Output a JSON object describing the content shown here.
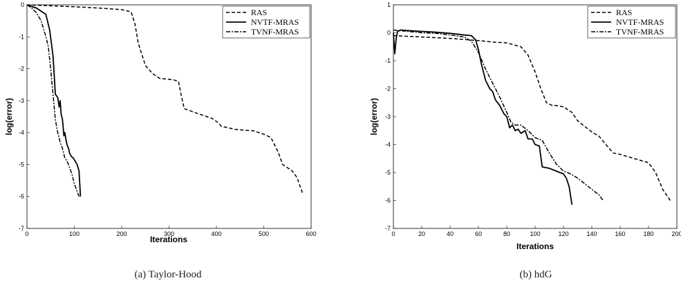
{
  "chart_data": [
    {
      "type": "line",
      "caption": "(a) Taylor-Hood",
      "xlabel": "Iterations",
      "ylabel": "log(error)",
      "xlim": [
        0,
        600
      ],
      "ylim": [
        -7,
        0
      ],
      "xticks": [
        0,
        100,
        200,
        300,
        400,
        500,
        600
      ],
      "yticks": [
        0,
        -1,
        -2,
        -3,
        -4,
        -5,
        -6,
        -7
      ],
      "legend_position": "top-right",
      "series": [
        {
          "name": "RAS",
          "style": "dashed",
          "x": [
            0,
            50,
            100,
            150,
            200,
            220,
            228,
            235,
            250,
            265,
            280,
            310,
            320,
            326,
            332,
            360,
            390,
            405,
            410,
            440,
            480,
            500,
            515,
            520,
            530,
            540,
            560,
            570,
            582
          ],
          "y": [
            0,
            -0.03,
            -0.06,
            -0.1,
            -0.15,
            -0.22,
            -0.6,
            -1.2,
            -1.9,
            -2.15,
            -2.3,
            -2.35,
            -2.4,
            -2.85,
            -3.25,
            -3.4,
            -3.55,
            -3.7,
            -3.8,
            -3.9,
            -3.95,
            -4.05,
            -4.15,
            -4.3,
            -4.6,
            -5.0,
            -5.2,
            -5.4,
            -5.9
          ]
        },
        {
          "name": "NVTF-MRAS",
          "style": "solid",
          "x": [
            0,
            20,
            30,
            40,
            48,
            55,
            60,
            65,
            68,
            70,
            72,
            75,
            78,
            80,
            82,
            85,
            88,
            90,
            94,
            98,
            102,
            106,
            110,
            113
          ],
          "y": [
            0,
            -0.1,
            -0.2,
            -0.3,
            -0.8,
            -1.6,
            -2.8,
            -2.9,
            -3.2,
            -3.0,
            -3.4,
            -3.6,
            -4.1,
            -4.0,
            -4.2,
            -4.4,
            -4.5,
            -4.65,
            -4.75,
            -4.8,
            -4.9,
            -5.0,
            -5.2,
            -6.0
          ]
        },
        {
          "name": "TVNF-MRAS",
          "style": "dashdot",
          "x": [
            0,
            10,
            20,
            30,
            40,
            45,
            50,
            55,
            60,
            65,
            70,
            75,
            80,
            85,
            90,
            95,
            100,
            105,
            110
          ],
          "y": [
            0,
            -0.1,
            -0.25,
            -0.5,
            -1.0,
            -1.3,
            -2.0,
            -2.8,
            -3.6,
            -4.0,
            -4.3,
            -4.5,
            -4.8,
            -4.9,
            -5.1,
            -5.3,
            -5.6,
            -5.8,
            -6.0
          ]
        }
      ]
    },
    {
      "type": "line",
      "caption": "(b) hdG",
      "xlabel": "Iterations",
      "ylabel": "log(error)",
      "xlim": [
        0,
        200
      ],
      "ylim": [
        -7,
        1
      ],
      "xticks": [
        0,
        20,
        40,
        60,
        80,
        100,
        120,
        140,
        160,
        180,
        200
      ],
      "yticks": [
        1,
        0,
        -1,
        -2,
        -3,
        -4,
        -5,
        -6,
        -7
      ],
      "legend_position": "top-right",
      "series": [
        {
          "name": "RAS",
          "style": "dashed",
          "x": [
            0,
            20,
            40,
            60,
            70,
            80,
            90,
            95,
            100,
            104,
            108,
            110,
            112,
            114,
            120,
            126,
            130,
            135,
            140,
            145,
            150,
            155,
            160,
            170,
            180,
            185,
            190,
            196
          ],
          "y": [
            -0.1,
            -0.15,
            -0.2,
            -0.28,
            -0.33,
            -0.36,
            -0.5,
            -0.8,
            -1.4,
            -2.0,
            -2.5,
            -2.55,
            -2.6,
            -2.6,
            -2.65,
            -2.85,
            -3.15,
            -3.35,
            -3.55,
            -3.7,
            -4.0,
            -4.3,
            -4.35,
            -4.5,
            -4.65,
            -5.0,
            -5.6,
            -6.05
          ]
        },
        {
          "name": "NVTF-MRAS",
          "style": "solid",
          "x": [
            0,
            1,
            2,
            3,
            5,
            10,
            20,
            30,
            40,
            50,
            55,
            58,
            60,
            62,
            65,
            68,
            70,
            72,
            75,
            78,
            80,
            82,
            84,
            86,
            88,
            90,
            93,
            95,
            98,
            100,
            103,
            105,
            110,
            115,
            120,
            122,
            124,
            126
          ],
          "y": [
            0,
            -0.75,
            -0.2,
            0.05,
            0.1,
            0.08,
            0.05,
            0.02,
            -0.02,
            -0.08,
            -0.1,
            -0.25,
            -0.6,
            -1.1,
            -1.7,
            -2.0,
            -2.1,
            -2.4,
            -2.6,
            -2.9,
            -3.0,
            -3.4,
            -3.3,
            -3.5,
            -3.45,
            -3.6,
            -3.5,
            -3.8,
            -3.8,
            -4.0,
            -4.05,
            -4.8,
            -4.85,
            -4.95,
            -5.05,
            -5.2,
            -5.5,
            -6.15
          ]
        },
        {
          "name": "TVNF-MRAS",
          "style": "dashdot",
          "x": [
            0,
            10,
            20,
            30,
            40,
            50,
            55,
            60,
            65,
            70,
            75,
            80,
            83,
            86,
            90,
            95,
            100,
            105,
            110,
            115,
            120,
            125,
            130,
            135,
            140,
            145,
            148
          ],
          "y": [
            0.1,
            0.05,
            0.0,
            -0.02,
            -0.08,
            -0.15,
            -0.3,
            -0.7,
            -1.3,
            -1.8,
            -2.3,
            -2.85,
            -3.2,
            -3.3,
            -3.3,
            -3.5,
            -3.75,
            -3.85,
            -4.3,
            -4.7,
            -4.95,
            -5.05,
            -5.2,
            -5.4,
            -5.6,
            -5.8,
            -6.0
          ]
        }
      ]
    }
  ]
}
